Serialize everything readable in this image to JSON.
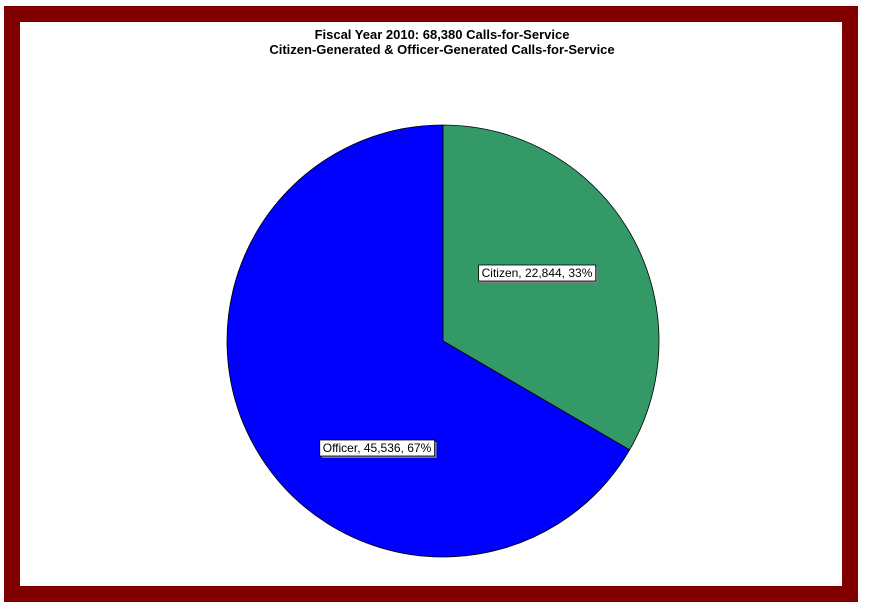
{
  "chart_data": {
    "type": "pie",
    "title": "Fiscal Year 2010: 68,380 Calls-for-Service",
    "subtitle": "Citizen-Generated & Officer-Generated  Calls-for-Service",
    "slices": [
      {
        "label": "Citizen",
        "value": 22844,
        "percent": 33,
        "color": "#339966",
        "data_label": "Citizen, 22,844, 33%"
      },
      {
        "label": "Officer",
        "value": 45536,
        "percent": 67,
        "color": "#0000ff",
        "data_label": "Officer, 45,536, 67%"
      }
    ]
  },
  "colors": {
    "frame": "#800000",
    "background": "#ffffff",
    "slice_outline": "#000000"
  }
}
